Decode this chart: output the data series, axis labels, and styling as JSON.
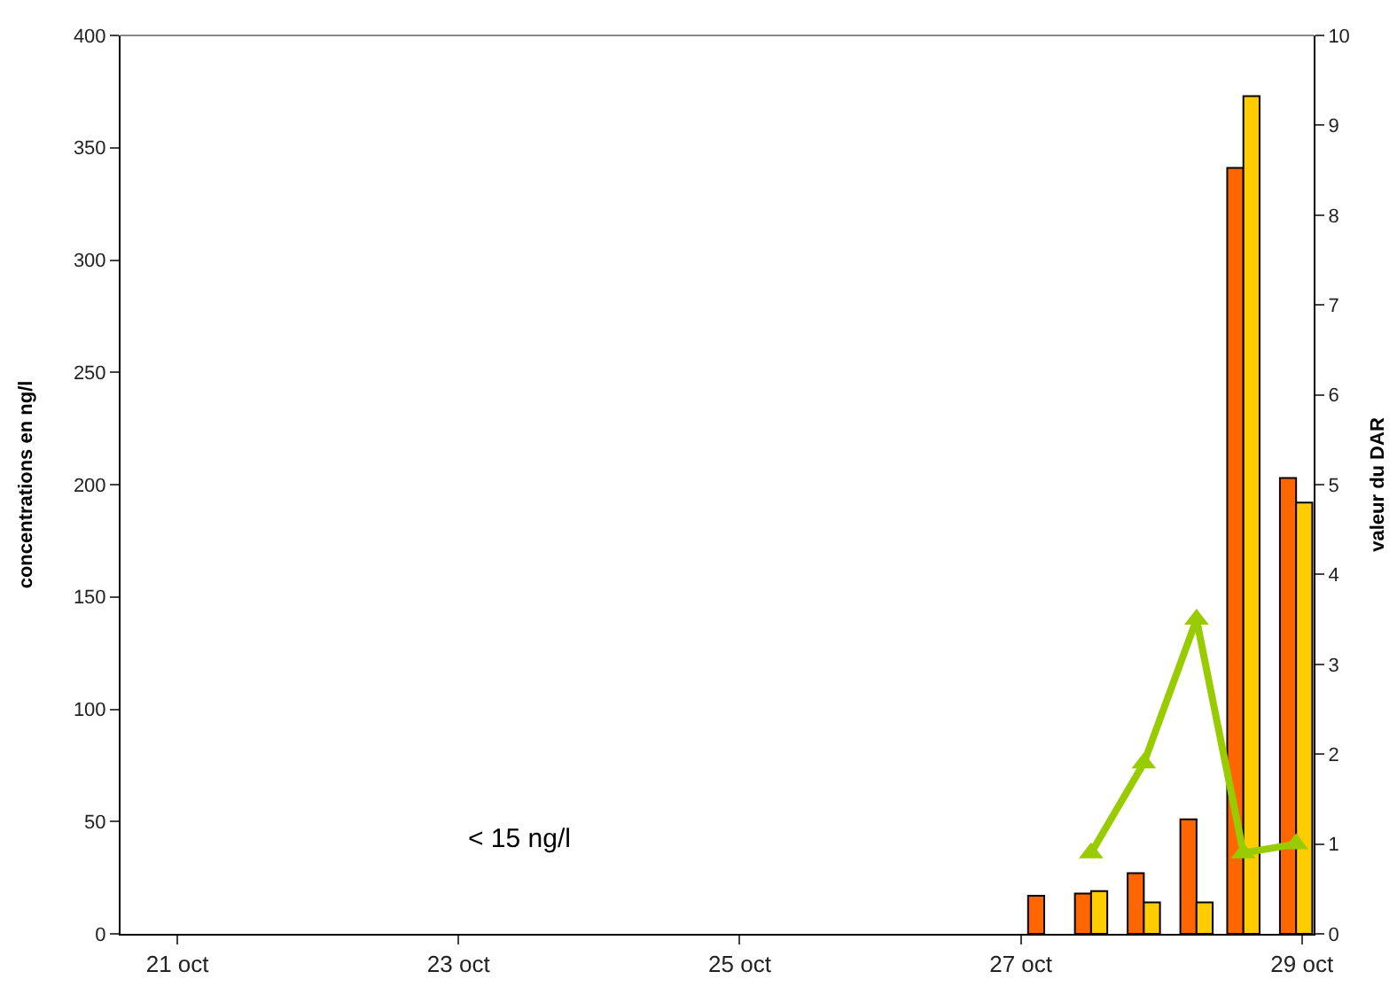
{
  "chart_data": {
    "type": "bar",
    "ylabel": "concentrations en ng/l",
    "y2label": "valeur du DAR",
    "x": [
      "--10-27T04:00",
      "--10-27T12:00",
      "--10-27T21:00",
      "--10-28T06:00",
      "--10-28T14:00",
      "--10-28T23:00"
    ],
    "series": [
      {
        "color": "#ff6600",
        "values": [
          17,
          18,
          27,
          51,
          341,
          203
        ]
      },
      {
        "color": "#ffcc00",
        "values": [
          null,
          19,
          14,
          14,
          373,
          192
        ]
      },
      {
        "type": "line",
        "axis": "y2",
        "color": "#99cc00",
        "marker": "triangle",
        "values": [
          null,
          0.9,
          1.9,
          3.5,
          0.9,
          1.0
        ]
      }
    ],
    "xlim": [
      "--10-20T14:18",
      "--10-29T02:00"
    ],
    "xticks": [
      {
        "value": "--10-21",
        "label": "21 oct"
      },
      {
        "value": "--10-23",
        "label": "23 oct"
      },
      {
        "value": "--10-25",
        "label": "25 oct"
      },
      {
        "value": "--10-27",
        "label": "27 oct"
      },
      {
        "value": "--10-29",
        "label": "29 oct"
      }
    ],
    "ylim": [
      0,
      400
    ],
    "yticks": [
      0,
      50,
      100,
      150,
      200,
      250,
      300,
      350,
      400
    ],
    "y2lim": [
      0,
      10
    ],
    "y2ticks": [
      0,
      1,
      2,
      3,
      4,
      5,
      6,
      7,
      8,
      9,
      10
    ],
    "annotations": [
      "< 15 ng/l"
    ],
    "grid": false
  }
}
